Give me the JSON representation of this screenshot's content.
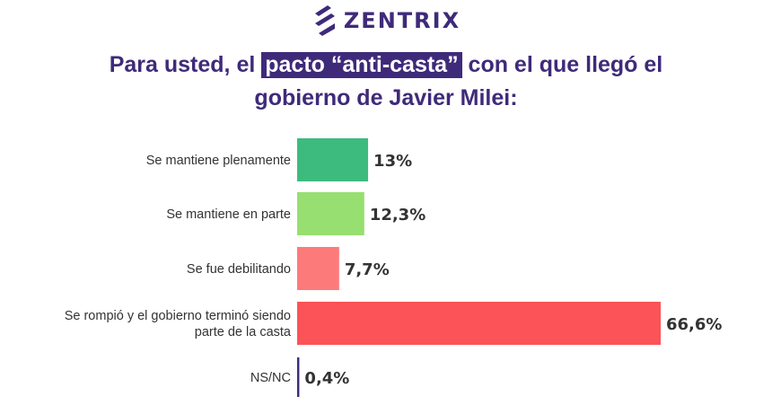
{
  "brand": {
    "name": "ZENTRIX",
    "color": "#3f2a7a"
  },
  "title": {
    "before": "Para usted, el ",
    "highlight": "pacto “anti-casta”",
    "after": " con el que llegó el",
    "line2": "gobierno de Javier Milei:"
  },
  "chart_data": {
    "type": "bar",
    "orientation": "horizontal",
    "categories": [
      "Se mantiene plenamente",
      "Se mantiene en parte",
      "Se fue debilitando",
      "Se rompió y el gobierno terminó siendo parte de la casta",
      "NS/NC"
    ],
    "category_lines": [
      [
        "Se mantiene plenamente"
      ],
      [
        "Se mantiene en parte"
      ],
      [
        "Se fue debilitando"
      ],
      [
        "Se rompió y el gobierno terminó siendo",
        "parte de la casta"
      ],
      [
        "NS/NC"
      ]
    ],
    "values": [
      13,
      12.3,
      7.7,
      66.6,
      0.4
    ],
    "value_labels": [
      "13%",
      "12,3%",
      "7,7%",
      "66,6%",
      "0,4%"
    ],
    "colors": [
      "#3dbb7f",
      "#97df70",
      "#fc7a7a",
      "#fb5357",
      "#3f2a7a"
    ],
    "unit": "%",
    "xlim": [
      0,
      66.6
    ],
    "grid": false,
    "legend": "none"
  }
}
